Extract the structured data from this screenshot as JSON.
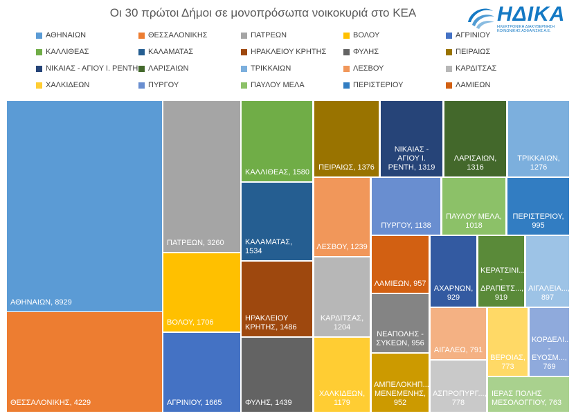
{
  "header": {
    "title": "Οι 30 πρώτοι Δήμοι σε μονοπρόσωπα νοικοκυριά στο ΚΕΑ"
  },
  "logo": {
    "name": "ΗΔΙΚΑ",
    "subtitle": "ΗΛΕΚΤΡΟΝΙΚΗ ΔΙΑΚΥΒΕΡΝΗΣΗ ΚΟΙΝΩΝΙΚΗΣ ΑΣΦΑΛΙΣΗΣ Α.Ε.",
    "color": "#1479c4"
  },
  "chart_data": {
    "type": "treemap",
    "title": "Οι 30 πρώτοι Δήμοι σε μονοπρόσωπα νοικοκυριά στο ΚΕΑ",
    "legend_position": "top",
    "items": [
      {
        "label": "ΑΘΗΝΑΙΩΝ",
        "value": 8929,
        "color": "#5b9bd5"
      },
      {
        "label": "ΘΕΣΣΑΛΟΝΙΚΗΣ",
        "value": 4229,
        "color": "#ed7d31"
      },
      {
        "label": "ΠΑΤΡΕΩΝ",
        "value": 3260,
        "color": "#a5a5a5"
      },
      {
        "label": "ΒΟΛΟΥ",
        "value": 1706,
        "color": "#ffc000"
      },
      {
        "label": "ΑΓΡΙΝΙΟΥ",
        "value": 1665,
        "color": "#4472c4"
      },
      {
        "label": "ΚΑΛΛΙΘΕΑΣ",
        "value": 1580,
        "color": "#70ad47"
      },
      {
        "label": "ΚΑΛΑΜΑΤΑΣ",
        "value": 1534,
        "color": "#255e91"
      },
      {
        "label": "ΗΡΑΚΛΕΙΟΥ ΚΡΗΤΗΣ",
        "value": 1486,
        "color": "#9e480e"
      },
      {
        "label": "ΦΥΛΗΣ",
        "value": 1439,
        "color": "#636363"
      },
      {
        "label": "ΠΕΙΡΑΙΩΣ",
        "value": 1376,
        "color": "#997300"
      },
      {
        "label": "ΝΙΚΑΙΑΣ - ΑΓΙΟΥ Ι. ΡΕΝΤΗ",
        "value": 1319,
        "color": "#264478"
      },
      {
        "label": "ΛΑΡΙΣΑΙΩΝ",
        "value": 1316,
        "color": "#43682b"
      },
      {
        "label": "ΤΡΙΚΚΑΙΩΝ",
        "value": 1276,
        "color": "#7cafdd"
      },
      {
        "label": "ΛΕΣΒΟΥ",
        "value": 1239,
        "color": "#f1975a"
      },
      {
        "label": "ΚΑΡΔΙΤΣΑΣ",
        "value": 1204,
        "color": "#b7b7b7"
      },
      {
        "label": "ΧΑΛΚΙΔΕΩΝ",
        "value": 1179,
        "color": "#ffcd33"
      },
      {
        "label": "ΠΥΡΓΟΥ",
        "value": 1138,
        "color": "#698ed0"
      },
      {
        "label": "ΠΑΥΛΟΥ ΜΕΛΑ",
        "value": 1018,
        "color": "#8cc168"
      },
      {
        "label": "ΠΕΡΙΣΤΕΡΙΟΥ",
        "value": 995,
        "color": "#327dc2"
      },
      {
        "label": "ΛΑΜΙΕΩΝ",
        "value": 957,
        "color": "#d26012"
      },
      {
        "label": "ΝΕΑΠΟΛΗΣ - ΣΥΚΕΩΝ",
        "value": 956,
        "color": "#848484"
      },
      {
        "label": "ΑΜΠΕΛΟΚΗΠ... ΜΕΝΕΜΕΝΗΣ",
        "value": 952,
        "color": "#cc9a00"
      },
      {
        "label": "ΑΧΑΡΝΩΝ",
        "value": 929,
        "color": "#335aa1"
      },
      {
        "label": "ΚΕΡΑΤΣΙΝΙ... - ΔΡΑΠΕΤΣ...",
        "value": 919,
        "color": "#5a8a39"
      },
      {
        "label": "ΑΙΓΑΛΕΙΑ...",
        "value": 897,
        "color": "#9dc3e6"
      },
      {
        "label": "ΑΙΓΑΛΕΩ",
        "value": 791,
        "color": "#f4b183"
      },
      {
        "label": "ΒΕΡΟΙΑΣ",
        "value": 773,
        "color": "#ffd966"
      },
      {
        "label": "ΚΟΡΔΕΛΙ... - ΕΥΟΣΜ...",
        "value": 769,
        "color": "#8faadc"
      },
      {
        "label": "ΑΣΠΡΟΠΥΡΓ...",
        "value": 778,
        "color": "#c9c9c9"
      },
      {
        "label": "ΙΕΡΑΣ ΠΟΛΗΣ ΜΕΣΟΛΟΓΓΙΟΥ",
        "value": 763,
        "color": "#a9d18e"
      }
    ]
  },
  "legend": [
    {
      "label": "ΑΘΗΝΑΙΩΝ",
      "color": "#5b9bd5"
    },
    {
      "label": "ΘΕΣΣΑΛΟΝΙΚΗΣ",
      "color": "#ed7d31"
    },
    {
      "label": "ΠΑΤΡΕΩΝ",
      "color": "#a5a5a5"
    },
    {
      "label": "ΒΟΛΟΥ",
      "color": "#ffc000"
    },
    {
      "label": "ΑΓΡΙΝΙΟΥ",
      "color": "#4472c4"
    },
    {
      "label": "ΚΑΛΛΙΘΕΑΣ",
      "color": "#70ad47"
    },
    {
      "label": "ΚΑΛΑΜΑΤΑΣ",
      "color": "#255e91"
    },
    {
      "label": "ΗΡΑΚΛΕΙΟΥ ΚΡΗΤΗΣ",
      "color": "#9e480e"
    },
    {
      "label": "ΦΥΛΗΣ",
      "color": "#636363"
    },
    {
      "label": "ΠΕΙΡΑΙΩΣ",
      "color": "#997300"
    },
    {
      "label": "ΝΙΚΑΙΑΣ - ΑΓΙΟΥ Ι. ΡΕΝΤΗ",
      "color": "#264478"
    },
    {
      "label": "ΛΑΡΙΣΑΙΩΝ",
      "color": "#43682b"
    },
    {
      "label": "ΤΡΙΚΚΑΙΩΝ",
      "color": "#7cafdd"
    },
    {
      "label": "ΛΕΣΒΟΥ",
      "color": "#f1975a"
    },
    {
      "label": "ΚΑΡΔΙΤΣΑΣ",
      "color": "#b7b7b7"
    },
    {
      "label": "ΧΑΛΚΙΔΕΩΝ",
      "color": "#ffcd33"
    },
    {
      "label": "ΠΥΡΓΟΥ",
      "color": "#698ed0"
    },
    {
      "label": "ΠΑΥΛΟΥ ΜΕΛΑ",
      "color": "#8cc168"
    },
    {
      "label": "ΠΕΡΙΣΤΕΡΙΟΥ",
      "color": "#327dc2"
    },
    {
      "label": "ΛΑΜΙΕΩΝ",
      "color": "#d26012"
    }
  ]
}
